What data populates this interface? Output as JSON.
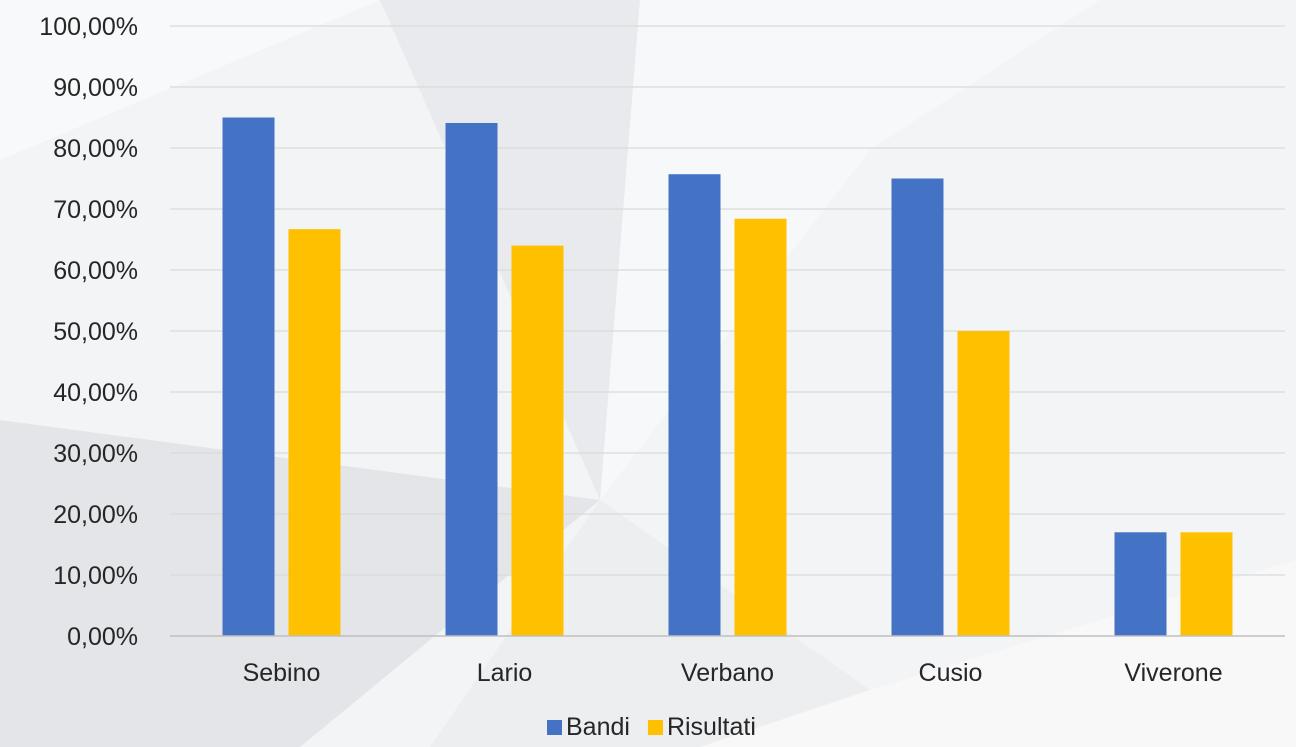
{
  "chart_data": {
    "type": "bar",
    "categories": [
      "Sebino",
      "Lario",
      "Verbano",
      "Cusio",
      "Viverone"
    ],
    "series": [
      {
        "name": "Bandi",
        "values": [
          85.0,
          84.1,
          75.7,
          75.0,
          17.0
        ],
        "color": "#4472c4"
      },
      {
        "name": "Risultati",
        "values": [
          66.7,
          64.0,
          68.4,
          50.0,
          17.0
        ],
        "color": "#ffc000"
      }
    ],
    "ylim": [
      0,
      100
    ],
    "yticks": [
      "0,00%",
      "10,00%",
      "20,00%",
      "30,00%",
      "40,00%",
      "50,00%",
      "60,00%",
      "70,00%",
      "80,00%",
      "90,00%",
      "100,00%"
    ],
    "grid": true,
    "legend_position": "bottom",
    "title": "",
    "xlabel": "",
    "ylabel": ""
  }
}
